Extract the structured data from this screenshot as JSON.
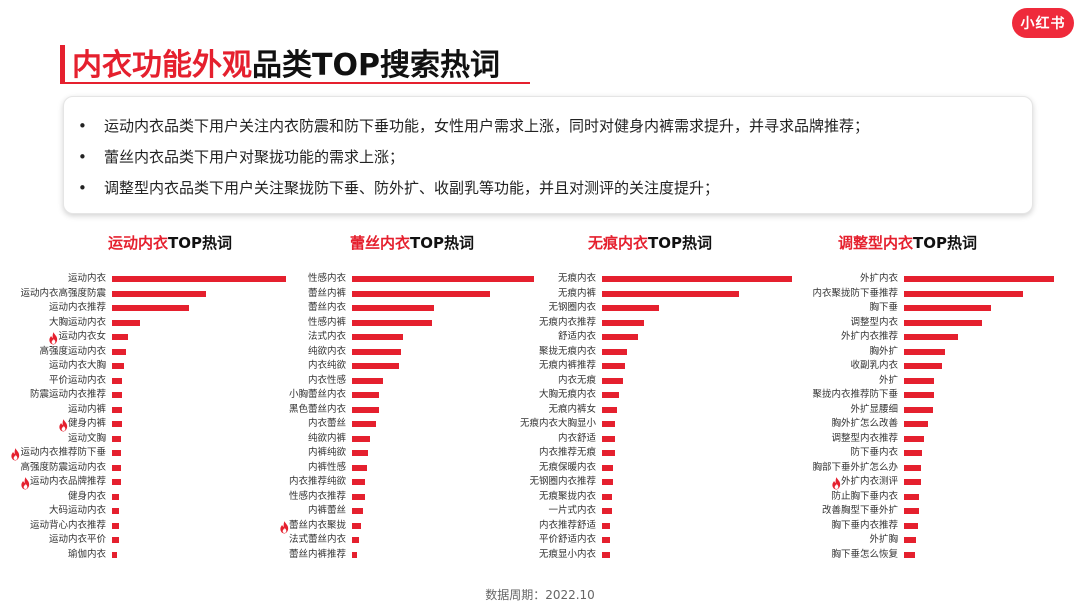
{
  "brand": {
    "logo_text": "小红书",
    "color": "#ef2a3b"
  },
  "header": {
    "title_red": "内衣功能外观",
    "title_black": "品类TOP搜索热词"
  },
  "summary": {
    "bullet": "•",
    "items": [
      "运动内衣品类下用户关注内衣防震和防下垂功能，女性用户需求上涨，同时对健身内裤需求提升，并寻求品牌推荐；",
      "蕾丝内衣品类下用户对聚拢功能的需求上涨；",
      "调整型内衣品类下用户关注聚拢防下垂、防外扩、收副乳等功能，并且对测评的关注度提升；"
    ]
  },
  "footer": {
    "text": "数据周期：2022.10"
  },
  "colors": {
    "accent": "#e5202e",
    "bar": "#e5202e"
  },
  "chart_data": [
    {
      "type": "bar",
      "orientation": "horizontal",
      "title_red": "运动内衣",
      "title_black": "TOP热词",
      "categories": [
        "运动内衣",
        "运动内衣高强度防震",
        "运动内衣推荐",
        "大胸运动内衣",
        "运动内衣女",
        "高强度运动内衣",
        "运动内衣大胸",
        "平价运动内衣",
        "防震运动内衣推荐",
        "运动内裤",
        "健身内裤",
        "运动文胸",
        "运动内衣推荐防下垂",
        "高强度防震运动内衣",
        "运动内衣品牌推荐",
        "健身内衣",
        "大码运动内衣",
        "运动背心内衣推荐",
        "运动内衣平价",
        "瑜伽内衣"
      ],
      "values": [
        100,
        54,
        44,
        16,
        9,
        8,
        7,
        6,
        6,
        6,
        6,
        5,
        5,
        5,
        5,
        4,
        4,
        4,
        4,
        3
      ],
      "hot": [
        false,
        false,
        false,
        false,
        true,
        false,
        false,
        false,
        false,
        false,
        true,
        false,
        true,
        false,
        true,
        false,
        false,
        false,
        false,
        false
      ]
    },
    {
      "type": "bar",
      "orientation": "horizontal",
      "title_red": "蕾丝内衣",
      "title_black": "TOP热词",
      "categories": [
        "性感内衣",
        "蕾丝内裤",
        "蕾丝内衣",
        "性感内裤",
        "法式内衣",
        "纯欲内衣",
        "内衣纯欲",
        "内衣性感",
        "小胸蕾丝内衣",
        "黑色蕾丝内衣",
        "内衣蕾丝",
        "纯欲内裤",
        "内裤纯欲",
        "内裤性感",
        "内衣推荐纯欲",
        "性感内衣推荐",
        "内裤蕾丝",
        "蕾丝内衣聚拢",
        "法式蕾丝内衣",
        "蕾丝内裤推荐"
      ],
      "values": [
        100,
        76,
        45,
        44,
        28,
        27,
        26,
        17,
        15,
        15,
        13,
        10,
        9,
        8,
        7,
        7,
        6,
        5,
        4,
        3
      ],
      "hot": [
        false,
        false,
        false,
        false,
        false,
        false,
        false,
        false,
        false,
        false,
        false,
        false,
        false,
        false,
        false,
        false,
        false,
        true,
        false,
        false
      ]
    },
    {
      "type": "bar",
      "orientation": "horizontal",
      "title_red": "无痕内衣",
      "title_black": "TOP热词",
      "categories": [
        "无痕内衣",
        "无痕内裤",
        "无钢圈内衣",
        "无痕内衣推荐",
        "舒适内衣",
        "聚拢无痕内衣",
        "无痕内裤推荐",
        "内衣无痕",
        "大胸无痕内衣",
        "无痕内裤女",
        "无痕内衣大胸显小",
        "内衣舒适",
        "内衣推荐无痕",
        "无痕保暖内衣",
        "无钢圈内衣推荐",
        "无痕聚拢内衣",
        "一片式内衣",
        "内衣推荐舒适",
        "平价舒适内衣",
        "无痕显小内衣"
      ],
      "values": [
        100,
        72,
        30,
        22,
        19,
        13,
        12,
        11,
        9,
        8,
        7,
        7,
        7,
        6,
        6,
        5,
        5,
        4,
        4,
        4
      ],
      "hot": [
        false,
        false,
        false,
        false,
        false,
        false,
        false,
        false,
        false,
        false,
        false,
        false,
        false,
        false,
        false,
        false,
        false,
        false,
        false,
        false
      ]
    },
    {
      "type": "bar",
      "orientation": "horizontal",
      "title_red": "调整型内衣",
      "title_black": "TOP热词",
      "categories": [
        "外扩内衣",
        "内衣聚拢防下垂推荐",
        "胸下垂",
        "调整型内衣",
        "外扩内衣推荐",
        "胸外扩",
        "收副乳内衣",
        "外扩",
        "聚拢内衣推荐防下垂",
        "外扩显腰细",
        "胸外扩怎么改善",
        "调整型内衣推荐",
        "防下垂内衣",
        "胸部下垂外扩怎么办",
        "外扩内衣测评",
        "防止胸下垂内衣",
        "改善胸型下垂外扩",
        "胸下垂内衣推荐",
        "外扩胸",
        "胸下垂怎么恢复"
      ],
      "values": [
        100,
        79,
        58,
        52,
        36,
        27,
        25,
        20,
        20,
        19,
        16,
        13,
        12,
        11,
        11,
        10,
        10,
        9,
        8,
        7
      ],
      "hot": [
        false,
        false,
        false,
        false,
        false,
        false,
        false,
        false,
        false,
        false,
        false,
        false,
        false,
        false,
        true,
        false,
        false,
        false,
        false,
        false
      ]
    }
  ]
}
